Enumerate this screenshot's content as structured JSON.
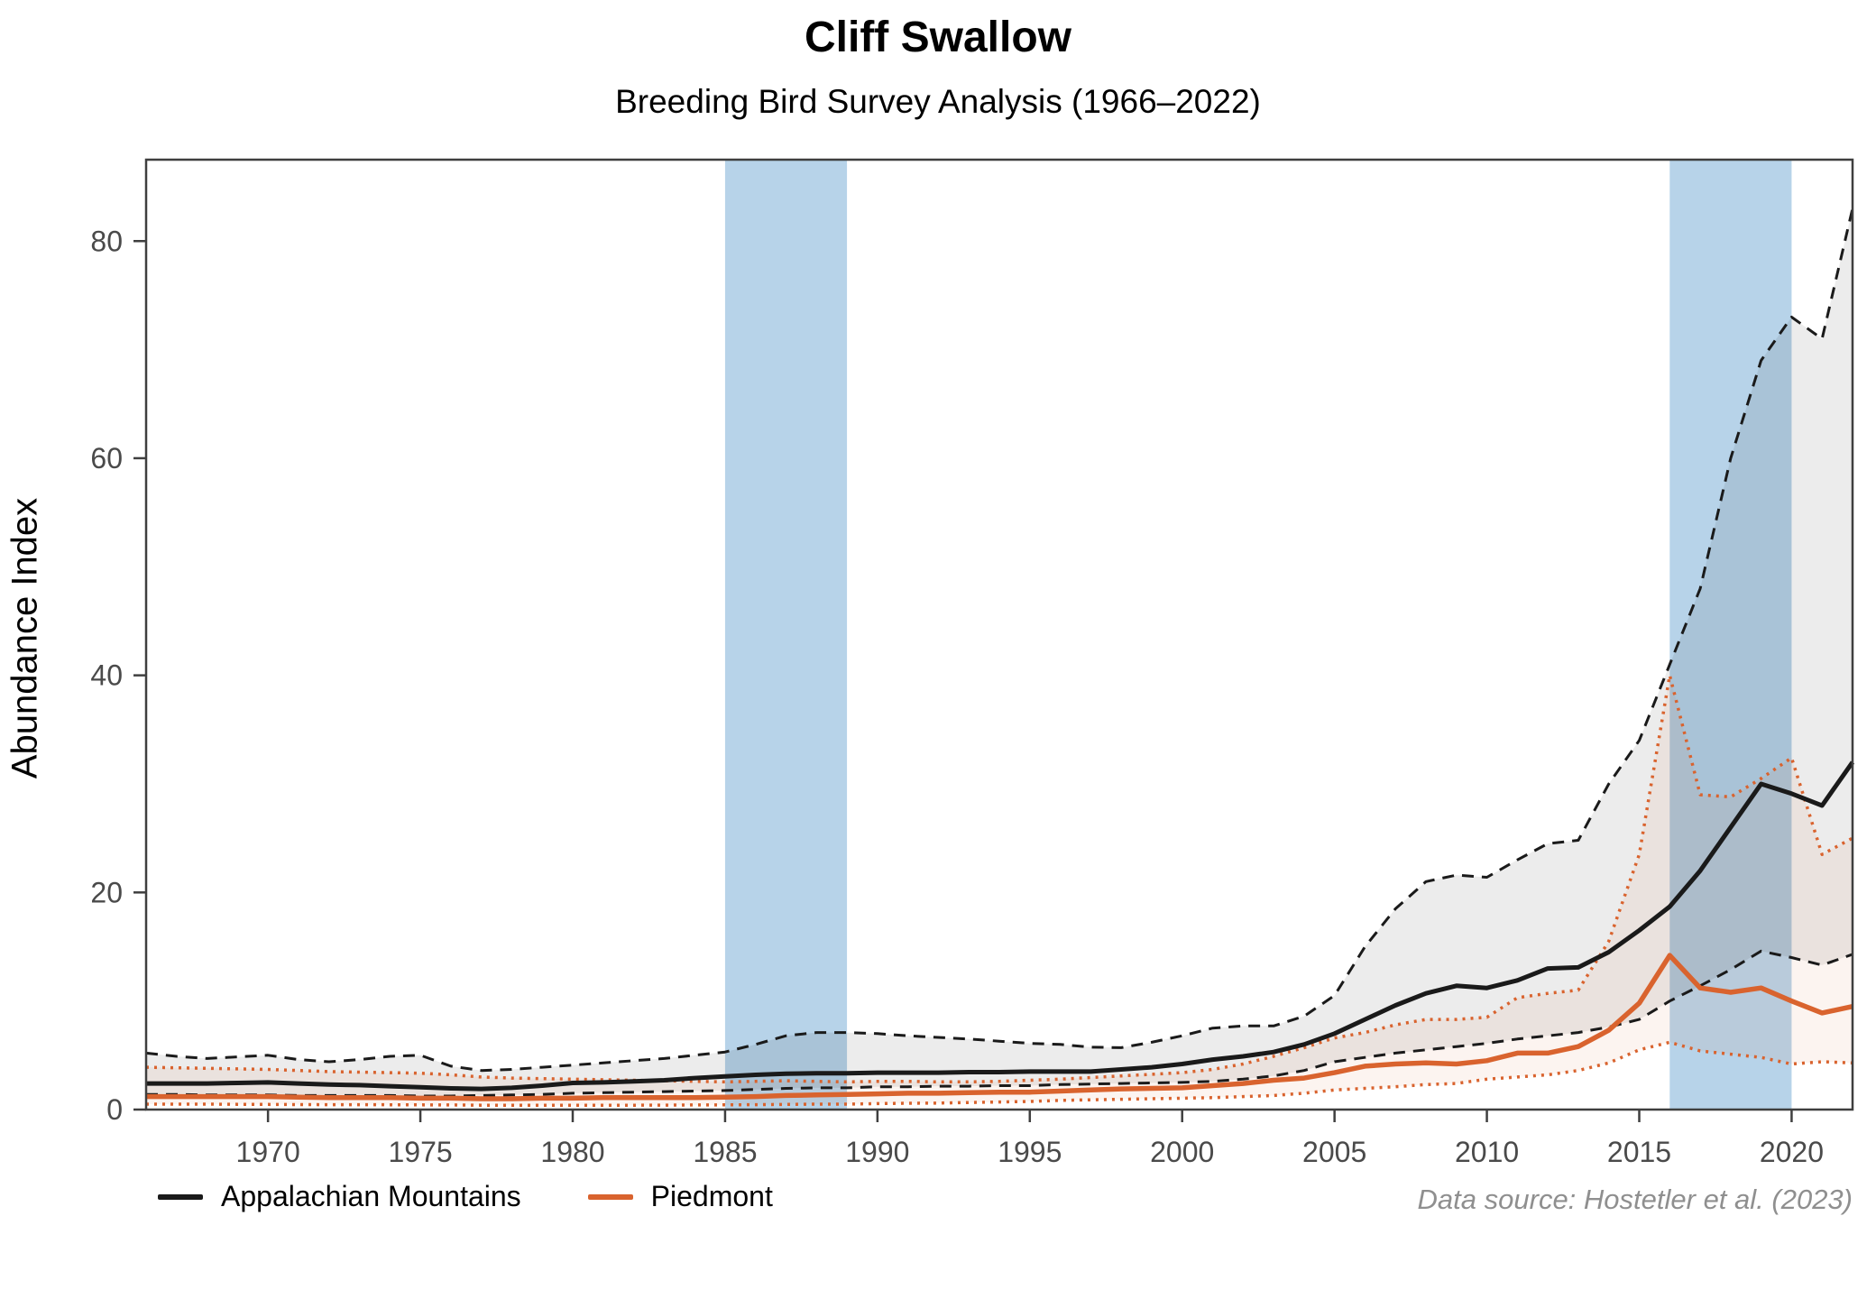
{
  "title": "Cliff Swallow",
  "subtitle": "Breeding Bird Survey Analysis (1966–2022)",
  "caption": "Data source: Hostetler et al. (2023)",
  "y_axis": {
    "label": "Abundance Index",
    "ticks": [
      0,
      20,
      40,
      60,
      80
    ],
    "max": 87.5
  },
  "x_axis": {
    "ticks": [
      1970,
      1975,
      1980,
      1985,
      1990,
      1995,
      2000,
      2005,
      2010,
      2015,
      2020
    ],
    "min": 1966,
    "max": 2022
  },
  "legend": {
    "items": [
      {
        "label": "Appalachian Mountains",
        "color": "#1a1a1a"
      },
      {
        "label": "Piedmont",
        "color": "#d9632e"
      }
    ]
  },
  "colors": {
    "appalachian": "#1a1a1a",
    "piedmont": "#d9632e",
    "highlight_band": "#b7d3e9",
    "appalachian_ribbon": "rgba(0,0,0,0.075)",
    "piedmont_ribbon": "rgba(217,99,46,0.07)",
    "frame": "#3f3f3f",
    "tick_text": "#4a4a4a"
  },
  "highlight_periods": [
    {
      "start": 1985,
      "end": 1989
    },
    {
      "start": 2016,
      "end": 2020
    }
  ],
  "chart_data": {
    "type": "line",
    "title": "Cliff Swallow",
    "subtitle": "Breeding Bird Survey Analysis (1966–2022)",
    "xlabel": "",
    "ylabel": "Abundance Index",
    "xlim": [
      1966,
      2022
    ],
    "ylim": [
      0,
      87.5
    ],
    "grid": false,
    "legend_position": "bottom-left",
    "x": [
      1966,
      1967,
      1968,
      1969,
      1970,
      1971,
      1972,
      1973,
      1974,
      1975,
      1976,
      1977,
      1978,
      1979,
      1980,
      1981,
      1982,
      1983,
      1984,
      1985,
      1986,
      1987,
      1988,
      1989,
      1990,
      1991,
      1992,
      1993,
      1994,
      1995,
      1996,
      1997,
      1998,
      1999,
      2000,
      2001,
      2002,
      2003,
      2004,
      2005,
      2006,
      2007,
      2008,
      2009,
      2010,
      2011,
      2012,
      2013,
      2014,
      2015,
      2016,
      2017,
      2018,
      2019,
      2020,
      2021,
      2022
    ],
    "series": [
      {
        "name": "Appalachian Mountains",
        "role": "mean",
        "style": "solid",
        "color": "#1a1a1a",
        "width": 5,
        "values": [
          2.4,
          2.4,
          2.4,
          2.45,
          2.5,
          2.4,
          2.3,
          2.25,
          2.15,
          2.05,
          1.95,
          1.9,
          2.0,
          2.2,
          2.45,
          2.5,
          2.6,
          2.7,
          2.9,
          3.05,
          3.2,
          3.3,
          3.35,
          3.35,
          3.4,
          3.4,
          3.4,
          3.45,
          3.45,
          3.5,
          3.5,
          3.5,
          3.7,
          3.9,
          4.2,
          4.6,
          4.9,
          5.3,
          6.0,
          7.0,
          8.3,
          9.6,
          10.7,
          11.4,
          11.2,
          11.9,
          13.0,
          13.1,
          14.5,
          16.5,
          18.7,
          22.0,
          26.0,
          30.0,
          29.1,
          28.0,
          32.0
        ]
      },
      {
        "name": "Appalachian Mountains CI upper",
        "role": "ci_upper",
        "style": "dashed",
        "color": "#1a1a1a",
        "width": 3,
        "values": [
          5.2,
          4.9,
          4.7,
          4.85,
          5.0,
          4.6,
          4.4,
          4.6,
          4.9,
          5.0,
          4.0,
          3.6,
          3.7,
          3.9,
          4.1,
          4.3,
          4.5,
          4.7,
          5.0,
          5.3,
          6.0,
          6.8,
          7.1,
          7.1,
          7.0,
          6.8,
          6.65,
          6.5,
          6.3,
          6.1,
          6.0,
          5.75,
          5.7,
          6.2,
          6.8,
          7.5,
          7.7,
          7.7,
          8.6,
          10.5,
          15.0,
          18.5,
          21.0,
          21.6,
          21.4,
          23.0,
          24.5,
          24.8,
          30.0,
          34.0,
          41.0,
          48.0,
          60.0,
          69.0,
          73.0,
          71.0,
          83.0
        ]
      },
      {
        "name": "Appalachian Mountains CI lower",
        "role": "ci_lower",
        "style": "dashed",
        "color": "#1a1a1a",
        "width": 3,
        "values": [
          1.4,
          1.4,
          1.35,
          1.35,
          1.35,
          1.3,
          1.3,
          1.3,
          1.3,
          1.25,
          1.25,
          1.3,
          1.35,
          1.4,
          1.5,
          1.55,
          1.6,
          1.65,
          1.7,
          1.75,
          1.85,
          1.95,
          2.0,
          2.0,
          2.1,
          2.1,
          2.15,
          2.15,
          2.2,
          2.2,
          2.3,
          2.35,
          2.4,
          2.45,
          2.5,
          2.6,
          2.8,
          3.1,
          3.6,
          4.4,
          4.8,
          5.2,
          5.5,
          5.8,
          6.1,
          6.5,
          6.8,
          7.1,
          7.6,
          8.3,
          10.0,
          11.4,
          12.9,
          14.6,
          14.0,
          13.3,
          14.3
        ]
      },
      {
        "name": "Piedmont",
        "role": "mean",
        "style": "solid",
        "color": "#d9632e",
        "width": 5.5,
        "values": [
          1.2,
          1.2,
          1.2,
          1.2,
          1.2,
          1.15,
          1.1,
          1.1,
          1.1,
          1.05,
          1.05,
          1.0,
          1.0,
          1.05,
          1.05,
          1.1,
          1.1,
          1.1,
          1.1,
          1.15,
          1.2,
          1.3,
          1.35,
          1.4,
          1.45,
          1.5,
          1.5,
          1.55,
          1.6,
          1.6,
          1.7,
          1.8,
          1.9,
          1.95,
          2.0,
          2.2,
          2.4,
          2.7,
          2.9,
          3.4,
          4.0,
          4.2,
          4.3,
          4.2,
          4.5,
          5.2,
          5.2,
          5.8,
          7.3,
          9.8,
          14.2,
          11.2,
          10.8,
          11.2,
          10.0,
          8.9,
          9.5
        ]
      },
      {
        "name": "Piedmont CI upper",
        "role": "ci_upper",
        "style": "dotted",
        "color": "#d9632e",
        "width": 3.5,
        "values": [
          3.9,
          3.85,
          3.8,
          3.75,
          3.7,
          3.6,
          3.5,
          3.45,
          3.4,
          3.35,
          3.2,
          3.0,
          2.9,
          2.85,
          2.8,
          2.75,
          2.7,
          2.65,
          2.6,
          2.55,
          2.6,
          2.65,
          2.6,
          2.55,
          2.6,
          2.6,
          2.55,
          2.55,
          2.6,
          2.7,
          2.8,
          2.95,
          3.1,
          3.25,
          3.4,
          3.7,
          4.2,
          4.9,
          5.7,
          6.6,
          7.1,
          7.8,
          8.3,
          8.3,
          8.5,
          10.3,
          10.7,
          11.0,
          15.5,
          23.5,
          40.0,
          29.0,
          28.8,
          30.5,
          32.4,
          23.5,
          25.0
        ]
      },
      {
        "name": "Piedmont CI lower",
        "role": "ci_lower",
        "style": "dotted",
        "color": "#d9632e",
        "width": 3.5,
        "values": [
          0.5,
          0.5,
          0.5,
          0.48,
          0.47,
          0.46,
          0.45,
          0.45,
          0.44,
          0.43,
          0.42,
          0.4,
          0.4,
          0.4,
          0.4,
          0.4,
          0.4,
          0.41,
          0.42,
          0.43,
          0.45,
          0.47,
          0.5,
          0.5,
          0.55,
          0.58,
          0.6,
          0.65,
          0.7,
          0.75,
          0.85,
          0.9,
          0.95,
          1.0,
          1.05,
          1.1,
          1.2,
          1.3,
          1.5,
          1.8,
          1.95,
          2.1,
          2.3,
          2.4,
          2.8,
          3.0,
          3.2,
          3.6,
          4.3,
          5.5,
          6.2,
          5.4,
          5.1,
          4.8,
          4.2,
          4.4,
          4.3
        ]
      }
    ]
  }
}
